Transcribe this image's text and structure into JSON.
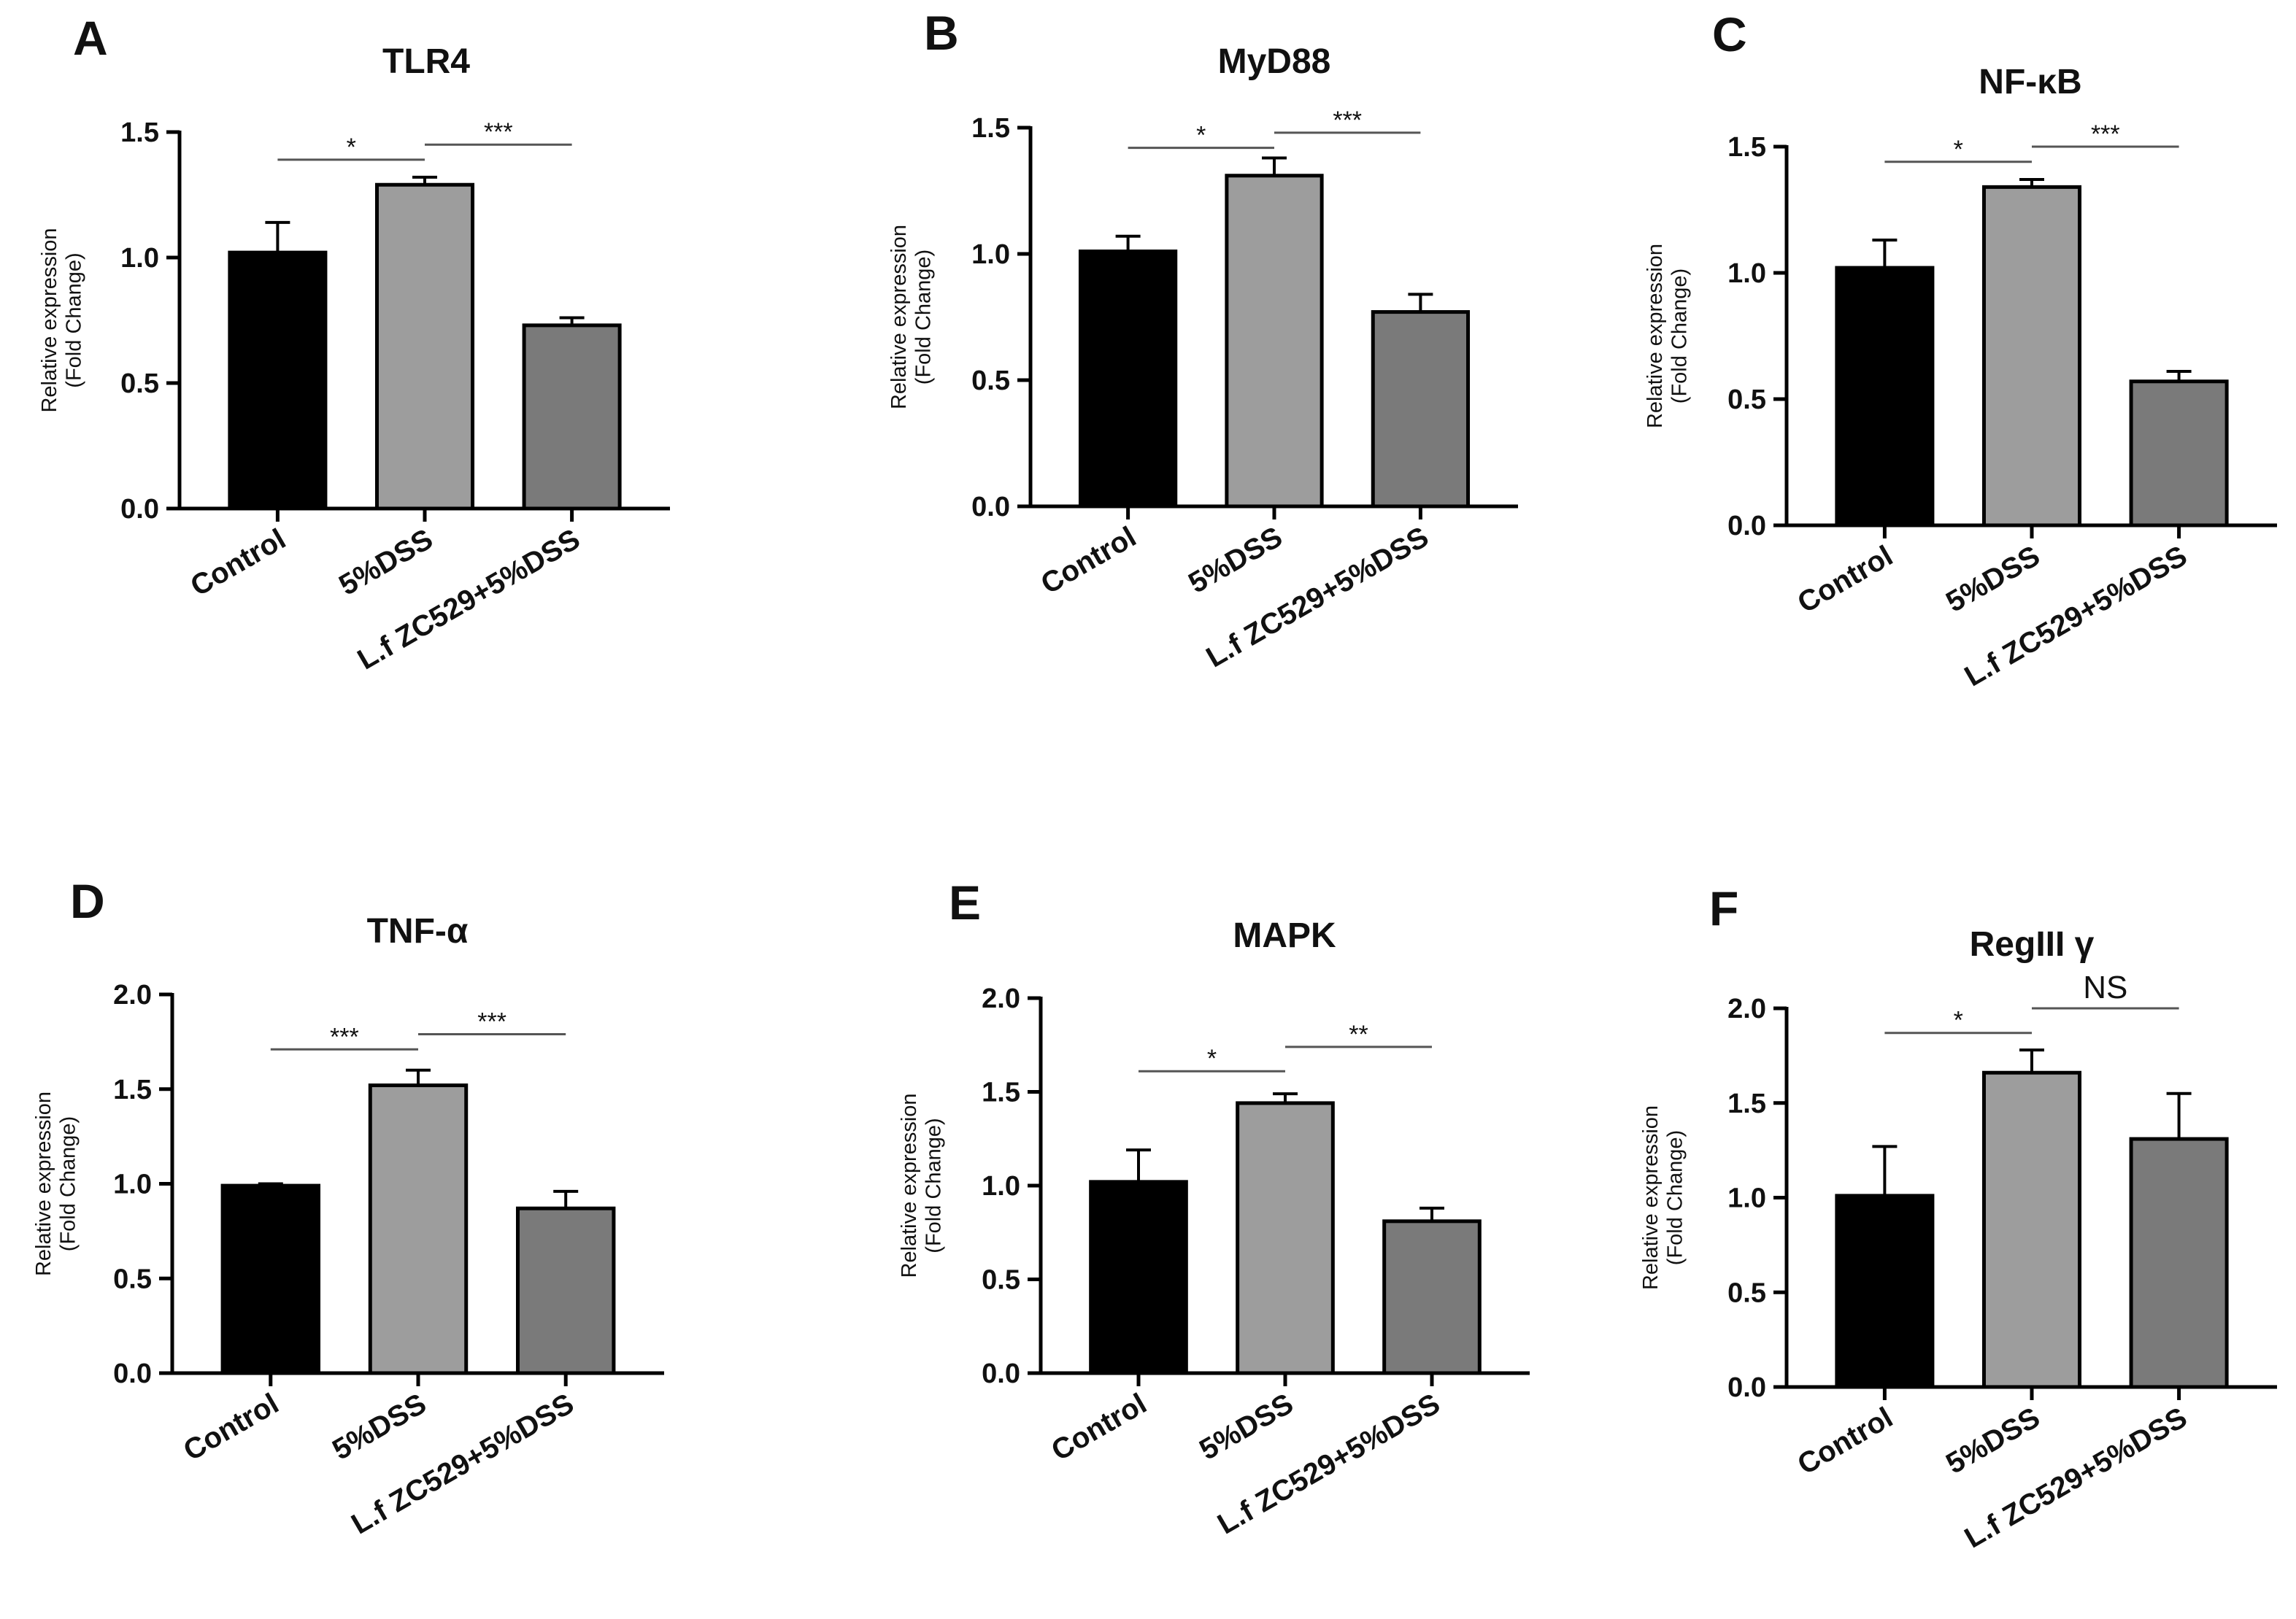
{
  "figure": {
    "bar_colors": [
      "#000000",
      "#9d9d9d",
      "#7a7a7a"
    ],
    "axis_color": "#000000"
  },
  "chart_data": [
    {
      "type": "bar",
      "panel": "A",
      "title": "TLR4",
      "categories": [
        "Control",
        "5%DSS",
        "L.f ZC529+5%DSS"
      ],
      "values": [
        1.02,
        1.29,
        0.73
      ],
      "errors": [
        0.12,
        0.03,
        0.03
      ],
      "ylabel": [
        "Relative expression",
        "(Fold Change)"
      ],
      "xlabel": "",
      "ylim": [
        0,
        1.5
      ],
      "yticks": [
        "0.0",
        "0.5",
        "1.0",
        "1.5"
      ],
      "significance": [
        {
          "from": 0,
          "to": 1,
          "label": "*",
          "y": 1.39
        },
        {
          "from": 1,
          "to": 2,
          "label": "***",
          "y": 1.45
        }
      ]
    },
    {
      "type": "bar",
      "panel": "B",
      "title": "MyD88",
      "categories": [
        "Control",
        "5%DSS",
        "L.f ZC529+5%DSS"
      ],
      "values": [
        1.01,
        1.31,
        0.77
      ],
      "errors": [
        0.06,
        0.07,
        0.07
      ],
      "ylabel": [
        "Relative expression",
        "(Fold Change)"
      ],
      "xlabel": "",
      "ylim": [
        0,
        1.5
      ],
      "yticks": [
        "0.0",
        "0.5",
        "1.0",
        "1.5"
      ],
      "significance": [
        {
          "from": 0,
          "to": 1,
          "label": "*",
          "y": 1.42
        },
        {
          "from": 1,
          "to": 2,
          "label": "***",
          "y": 1.48
        }
      ]
    },
    {
      "type": "bar",
      "panel": "C",
      "title": "NF-κB",
      "categories": [
        "Control",
        "5%DSS",
        "L.f ZC529+5%DSS"
      ],
      "values": [
        1.02,
        1.34,
        0.57
      ],
      "errors": [
        0.11,
        0.03,
        0.04
      ],
      "ylabel": [
        "Relative expression",
        "(Fold Change)"
      ],
      "xlabel": "",
      "ylim": [
        0,
        1.5
      ],
      "yticks": [
        "0.0",
        "0.5",
        "1.0",
        "1.5"
      ],
      "significance": [
        {
          "from": 0,
          "to": 1,
          "label": "*",
          "y": 1.44
        },
        {
          "from": 1,
          "to": 2,
          "label": "***",
          "y": 1.5
        }
      ]
    },
    {
      "type": "bar",
      "panel": "D",
      "title": "TNF-α",
      "categories": [
        "Control",
        "5%DSS",
        "L.f ZC529+5%DSS"
      ],
      "values": [
        0.99,
        1.52,
        0.87
      ],
      "errors": [
        0.01,
        0.08,
        0.09
      ],
      "ylabel": [
        "Relative expression",
        "(Fold Change)"
      ],
      "xlabel": "",
      "ylim": [
        0,
        2.0
      ],
      "yticks": [
        "0.0",
        "0.5",
        "1.0",
        "1.5",
        "2.0"
      ],
      "significance": [
        {
          "from": 0,
          "to": 1,
          "label": "***",
          "y": 1.71
        },
        {
          "from": 1,
          "to": 2,
          "label": "***",
          "y": 1.79
        }
      ]
    },
    {
      "type": "bar",
      "panel": "E",
      "title": "MAPK",
      "categories": [
        "Control",
        "5%DSS",
        "L.f ZC529+5%DSS"
      ],
      "values": [
        1.02,
        1.44,
        0.81
      ],
      "errors": [
        0.17,
        0.05,
        0.07
      ],
      "ylabel": [
        "Relative expression",
        "(Fold Change)"
      ],
      "xlabel": "",
      "ylim": [
        0,
        2.0
      ],
      "yticks": [
        "0.0",
        "0.5",
        "1.0",
        "1.5",
        "2.0"
      ],
      "significance": [
        {
          "from": 0,
          "to": 1,
          "label": "*",
          "y": 1.61
        },
        {
          "from": 1,
          "to": 2,
          "label": "**",
          "y": 1.74
        }
      ]
    },
    {
      "type": "bar",
      "panel": "F",
      "title": "RegIII γ",
      "categories": [
        "Control",
        "5%DSS",
        "L.f ZC529+5%DSS"
      ],
      "values": [
        1.01,
        1.66,
        1.31
      ],
      "errors": [
        0.26,
        0.12,
        0.24
      ],
      "ylabel": [
        "Relative expression",
        "(Fold Change)"
      ],
      "xlabel": "",
      "ylim": [
        0,
        2.0
      ],
      "yticks": [
        "0.0",
        "0.5",
        "1.0",
        "1.5",
        "2.0"
      ],
      "significance": [
        {
          "from": 0,
          "to": 1,
          "label": "*",
          "y": 1.87
        },
        {
          "from": 1,
          "to": 2,
          "label": "NS",
          "y": 2.0
        }
      ]
    }
  ]
}
